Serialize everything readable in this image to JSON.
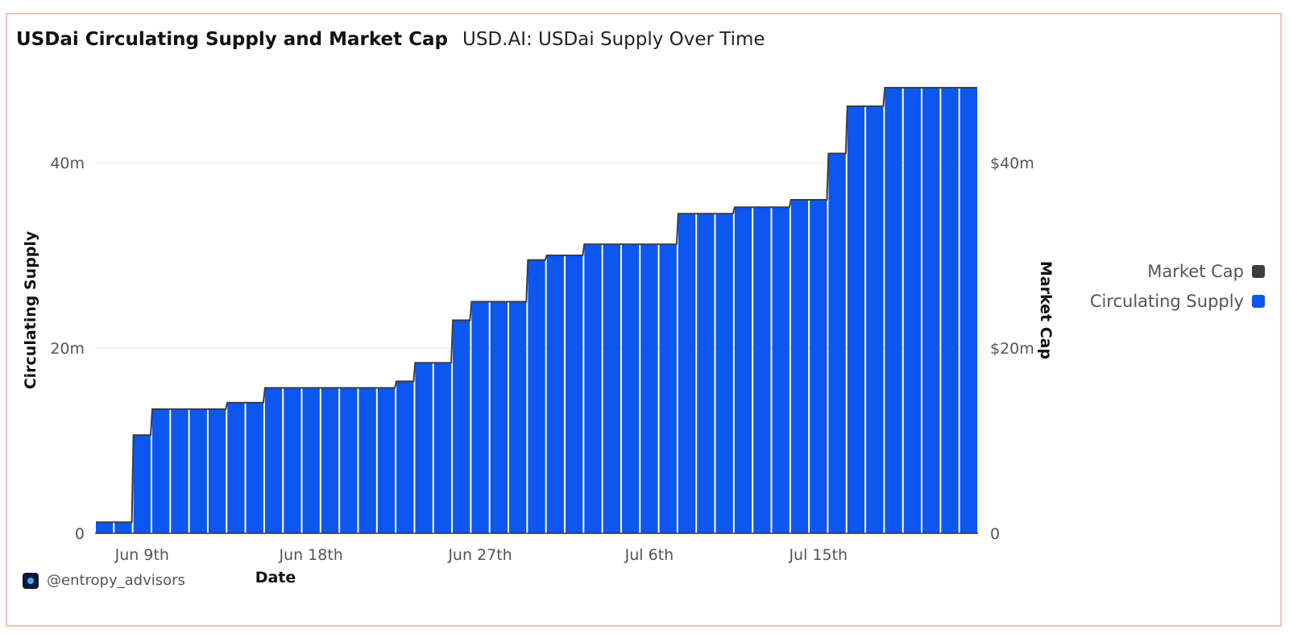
{
  "header": {
    "title": "USDai Circulating Supply and Market Cap",
    "subtitle": "USD.AI: USDai Supply Over Time"
  },
  "legend": {
    "items": [
      {
        "label": "Market Cap",
        "color": "#3d3d3d"
      },
      {
        "label": "Circulating Supply",
        "color": "#0b57f0"
      }
    ]
  },
  "watermark": {
    "handle": "@entropy_advisors",
    "icon": "entropy-logo-icon"
  },
  "chart_data": {
    "type": "bar",
    "xlabel": "Date",
    "ylabel_left": "Circulating Supply",
    "ylabel_right": "Market Cap",
    "ylim": [
      0,
      48
    ],
    "grid": true,
    "legend_position": "right",
    "left_ticks": [
      {
        "value": 0,
        "label": "0"
      },
      {
        "value": 20,
        "label": "20m"
      },
      {
        "value": 40,
        "label": "40m"
      }
    ],
    "right_ticks": [
      {
        "value": 0,
        "label": "0"
      },
      {
        "value": 20,
        "label": "$20m"
      },
      {
        "value": 40,
        "label": "$40m"
      }
    ],
    "x_ticks": [
      {
        "index": 2,
        "label": "Jun 9th"
      },
      {
        "index": 11,
        "label": "Jun 18th"
      },
      {
        "index": 20,
        "label": "Jun 27th"
      },
      {
        "index": 29,
        "label": "Jul 6th"
      },
      {
        "index": 38,
        "label": "Jul 15th"
      }
    ],
    "categories": [
      "Jun 7",
      "Jun 8",
      "Jun 9",
      "Jun 10",
      "Jun 11",
      "Jun 12",
      "Jun 13",
      "Jun 14",
      "Jun 15",
      "Jun 16",
      "Jun 17",
      "Jun 18",
      "Jun 19",
      "Jun 20",
      "Jun 21",
      "Jun 22",
      "Jun 23",
      "Jun 24",
      "Jun 25",
      "Jun 26",
      "Jun 27",
      "Jun 28",
      "Jun 29",
      "Jun 30",
      "Jul 1",
      "Jul 2",
      "Jul 3",
      "Jul 4",
      "Jul 5",
      "Jul 6",
      "Jul 7",
      "Jul 8",
      "Jul 9",
      "Jul 10",
      "Jul 11",
      "Jul 12",
      "Jul 13",
      "Jul 14",
      "Jul 15",
      "Jul 16",
      "Jul 17",
      "Jul 18",
      "Jul 19",
      "Jul 20",
      "Jul 21",
      "Jul 22",
      "Jul 23"
    ],
    "series": [
      {
        "name": "Circulating Supply",
        "type": "bar",
        "color": "#0b57f0",
        "values": [
          1.2,
          1.2,
          10.6,
          13.4,
          13.4,
          13.4,
          13.4,
          14.1,
          14.1,
          15.7,
          15.7,
          15.7,
          15.7,
          15.7,
          15.7,
          15.7,
          16.4,
          18.4,
          18.4,
          23.0,
          25.0,
          25.0,
          25.0,
          29.5,
          30.0,
          30.0,
          31.2,
          31.2,
          31.2,
          31.2,
          31.2,
          34.5,
          34.5,
          34.5,
          35.2,
          35.2,
          35.2,
          36.0,
          36.0,
          41.0,
          46.1,
          46.1,
          48.1,
          48.1,
          48.1,
          48.1,
          48.1
        ]
      },
      {
        "name": "Market Cap",
        "type": "line",
        "color": "#3d3d3d",
        "values": [
          1.2,
          1.2,
          10.6,
          13.4,
          13.4,
          13.4,
          13.4,
          14.1,
          14.1,
          15.7,
          15.7,
          15.7,
          15.7,
          15.7,
          15.7,
          15.7,
          16.4,
          18.4,
          18.4,
          23.0,
          25.0,
          25.0,
          25.0,
          29.5,
          30.0,
          30.0,
          31.2,
          31.2,
          31.2,
          31.2,
          31.2,
          34.5,
          34.5,
          34.5,
          35.2,
          35.2,
          35.2,
          36.0,
          36.0,
          41.0,
          46.1,
          46.1,
          48.1,
          48.1,
          48.1,
          48.1,
          48.1
        ]
      }
    ]
  }
}
